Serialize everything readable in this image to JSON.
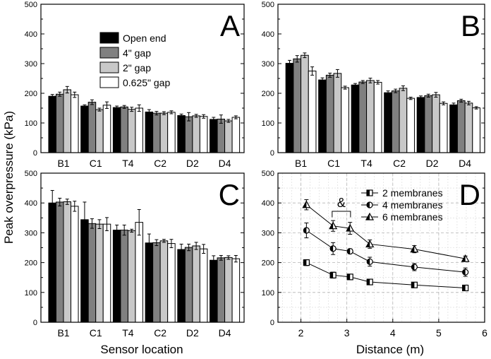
{
  "figure": {
    "y_label": "Peak overpressure (kPa)",
    "x_label_left": "Sensor location",
    "x_label_right": "Distance (m)"
  },
  "colors": {
    "open_end": "#000000",
    "gap_4": "#808080",
    "gap_2": "#c8c8c8",
    "gap_0625": "#ffffff",
    "line": "#000000",
    "grid": "#b4b4b4"
  },
  "chart_data": [
    {
      "type": "bar",
      "panel_label": "A",
      "categories": [
        "B1",
        "C1",
        "T4",
        "C2",
        "D2",
        "D4"
      ],
      "ylim": [
        0,
        500
      ],
      "yticks": [
        0,
        100,
        200,
        300,
        400,
        500
      ],
      "legend": {
        "placement": "top-left",
        "entries": [
          "Open end",
          "4\" gap",
          "2\" gap",
          "0.625\" gap"
        ]
      },
      "series": [
        {
          "name": "Open end",
          "values": [
            190,
            157,
            152,
            137,
            125,
            112
          ],
          "errors": [
            6,
            4,
            5,
            8,
            5,
            7
          ]
        },
        {
          "name": "4\" gap",
          "values": [
            197,
            170,
            154,
            133,
            121,
            113
          ],
          "errors": [
            7,
            8,
            5,
            6,
            14,
            14
          ]
        },
        {
          "name": "2\" gap",
          "values": [
            212,
            145,
            146,
            133,
            124,
            107
          ],
          "errors": [
            11,
            5,
            7,
            5,
            5,
            5
          ]
        },
        {
          "name": "0.625\" gap",
          "values": [
            195,
            160,
            150,
            136,
            122,
            119
          ],
          "errors": [
            9,
            11,
            11,
            5,
            6,
            5
          ]
        }
      ]
    },
    {
      "type": "bar",
      "panel_label": "B",
      "categories": [
        "B1",
        "C1",
        "T4",
        "C2",
        "D2",
        "D4"
      ],
      "ylim": [
        0,
        500
      ],
      "yticks": [
        0,
        100,
        200,
        300,
        400,
        500
      ],
      "series": [
        {
          "name": "Open end",
          "values": [
            301,
            245,
            228,
            202,
            186,
            161
          ],
          "errors": [
            10,
            7,
            5,
            6,
            5,
            6
          ]
        },
        {
          "name": "4\" gap",
          "values": [
            316,
            261,
            238,
            208,
            192,
            175
          ],
          "errors": [
            11,
            7,
            5,
            6,
            5,
            5
          ]
        },
        {
          "name": "2\" gap",
          "values": [
            328,
            267,
            243,
            217,
            195,
            167
          ],
          "errors": [
            8,
            13,
            8,
            8,
            8,
            6
          ]
        },
        {
          "name": "0.625\" gap",
          "values": [
            275,
            219,
            237,
            183,
            166,
            151
          ],
          "errors": [
            14,
            5,
            6,
            4,
            5,
            4
          ]
        }
      ]
    },
    {
      "type": "bar",
      "panel_label": "C",
      "categories": [
        "B1",
        "C1",
        "T4",
        "C2",
        "D2",
        "D4"
      ],
      "ylim": [
        0,
        500
      ],
      "yticks": [
        0,
        100,
        200,
        300,
        400,
        500
      ],
      "series": [
        {
          "name": "Open end",
          "values": [
            400,
            344,
            309,
            266,
            244,
            208
          ],
          "errors": [
            42,
            59,
            17,
            30,
            18,
            15
          ]
        },
        {
          "name": "4\" gap",
          "values": [
            403,
            331,
            309,
            267,
            251,
            216
          ],
          "errors": [
            13,
            16,
            17,
            10,
            11,
            8
          ]
        },
        {
          "name": "2\" gap",
          "values": [
            404,
            329,
            307,
            273,
            256,
            217
          ],
          "errors": [
            9,
            15,
            5,
            5,
            12,
            6
          ]
        },
        {
          "name": "0.625\" gap",
          "values": [
            389,
            329,
            335,
            264,
            246,
            213
          ],
          "errors": [
            17,
            22,
            43,
            14,
            15,
            11
          ]
        }
      ]
    },
    {
      "type": "line",
      "panel_label": "D",
      "xlim": [
        1.5,
        6
      ],
      "ylim": [
        0,
        500
      ],
      "xticks": [
        2,
        3,
        4,
        5,
        6
      ],
      "yticks": [
        0,
        100,
        200,
        300,
        400,
        500
      ],
      "legend": {
        "placement": "top-right",
        "entries": [
          "2 membranes",
          "4 membranes",
          "6 membranes"
        ]
      },
      "annotation": "&",
      "annotation_span_x": [
        2.68,
        3.08
      ],
      "series": [
        {
          "name": "2 membranes",
          "marker": "square",
          "x": [
            2.12,
            2.7,
            3.07,
            3.5,
            4.47,
            5.58
          ],
          "y": [
            200,
            158,
            152,
            135,
            125,
            115
          ],
          "errors": [
            10,
            10,
            5,
            6,
            5,
            7
          ]
        },
        {
          "name": "4 membranes",
          "marker": "circle",
          "x": [
            2.12,
            2.7,
            3.07,
            3.5,
            4.47,
            5.58
          ],
          "y": [
            308,
            247,
            238,
            203,
            185,
            168
          ],
          "errors": [
            25,
            20,
            8,
            15,
            12,
            14
          ]
        },
        {
          "name": "6 membranes",
          "marker": "triangle",
          "x": [
            2.12,
            2.7,
            3.07,
            3.5,
            4.47,
            5.58
          ],
          "y": [
            394,
            323,
            315,
            262,
            245,
            213
          ],
          "errors": [
            17,
            18,
            20,
            14,
            12,
            9
          ]
        }
      ]
    }
  ]
}
